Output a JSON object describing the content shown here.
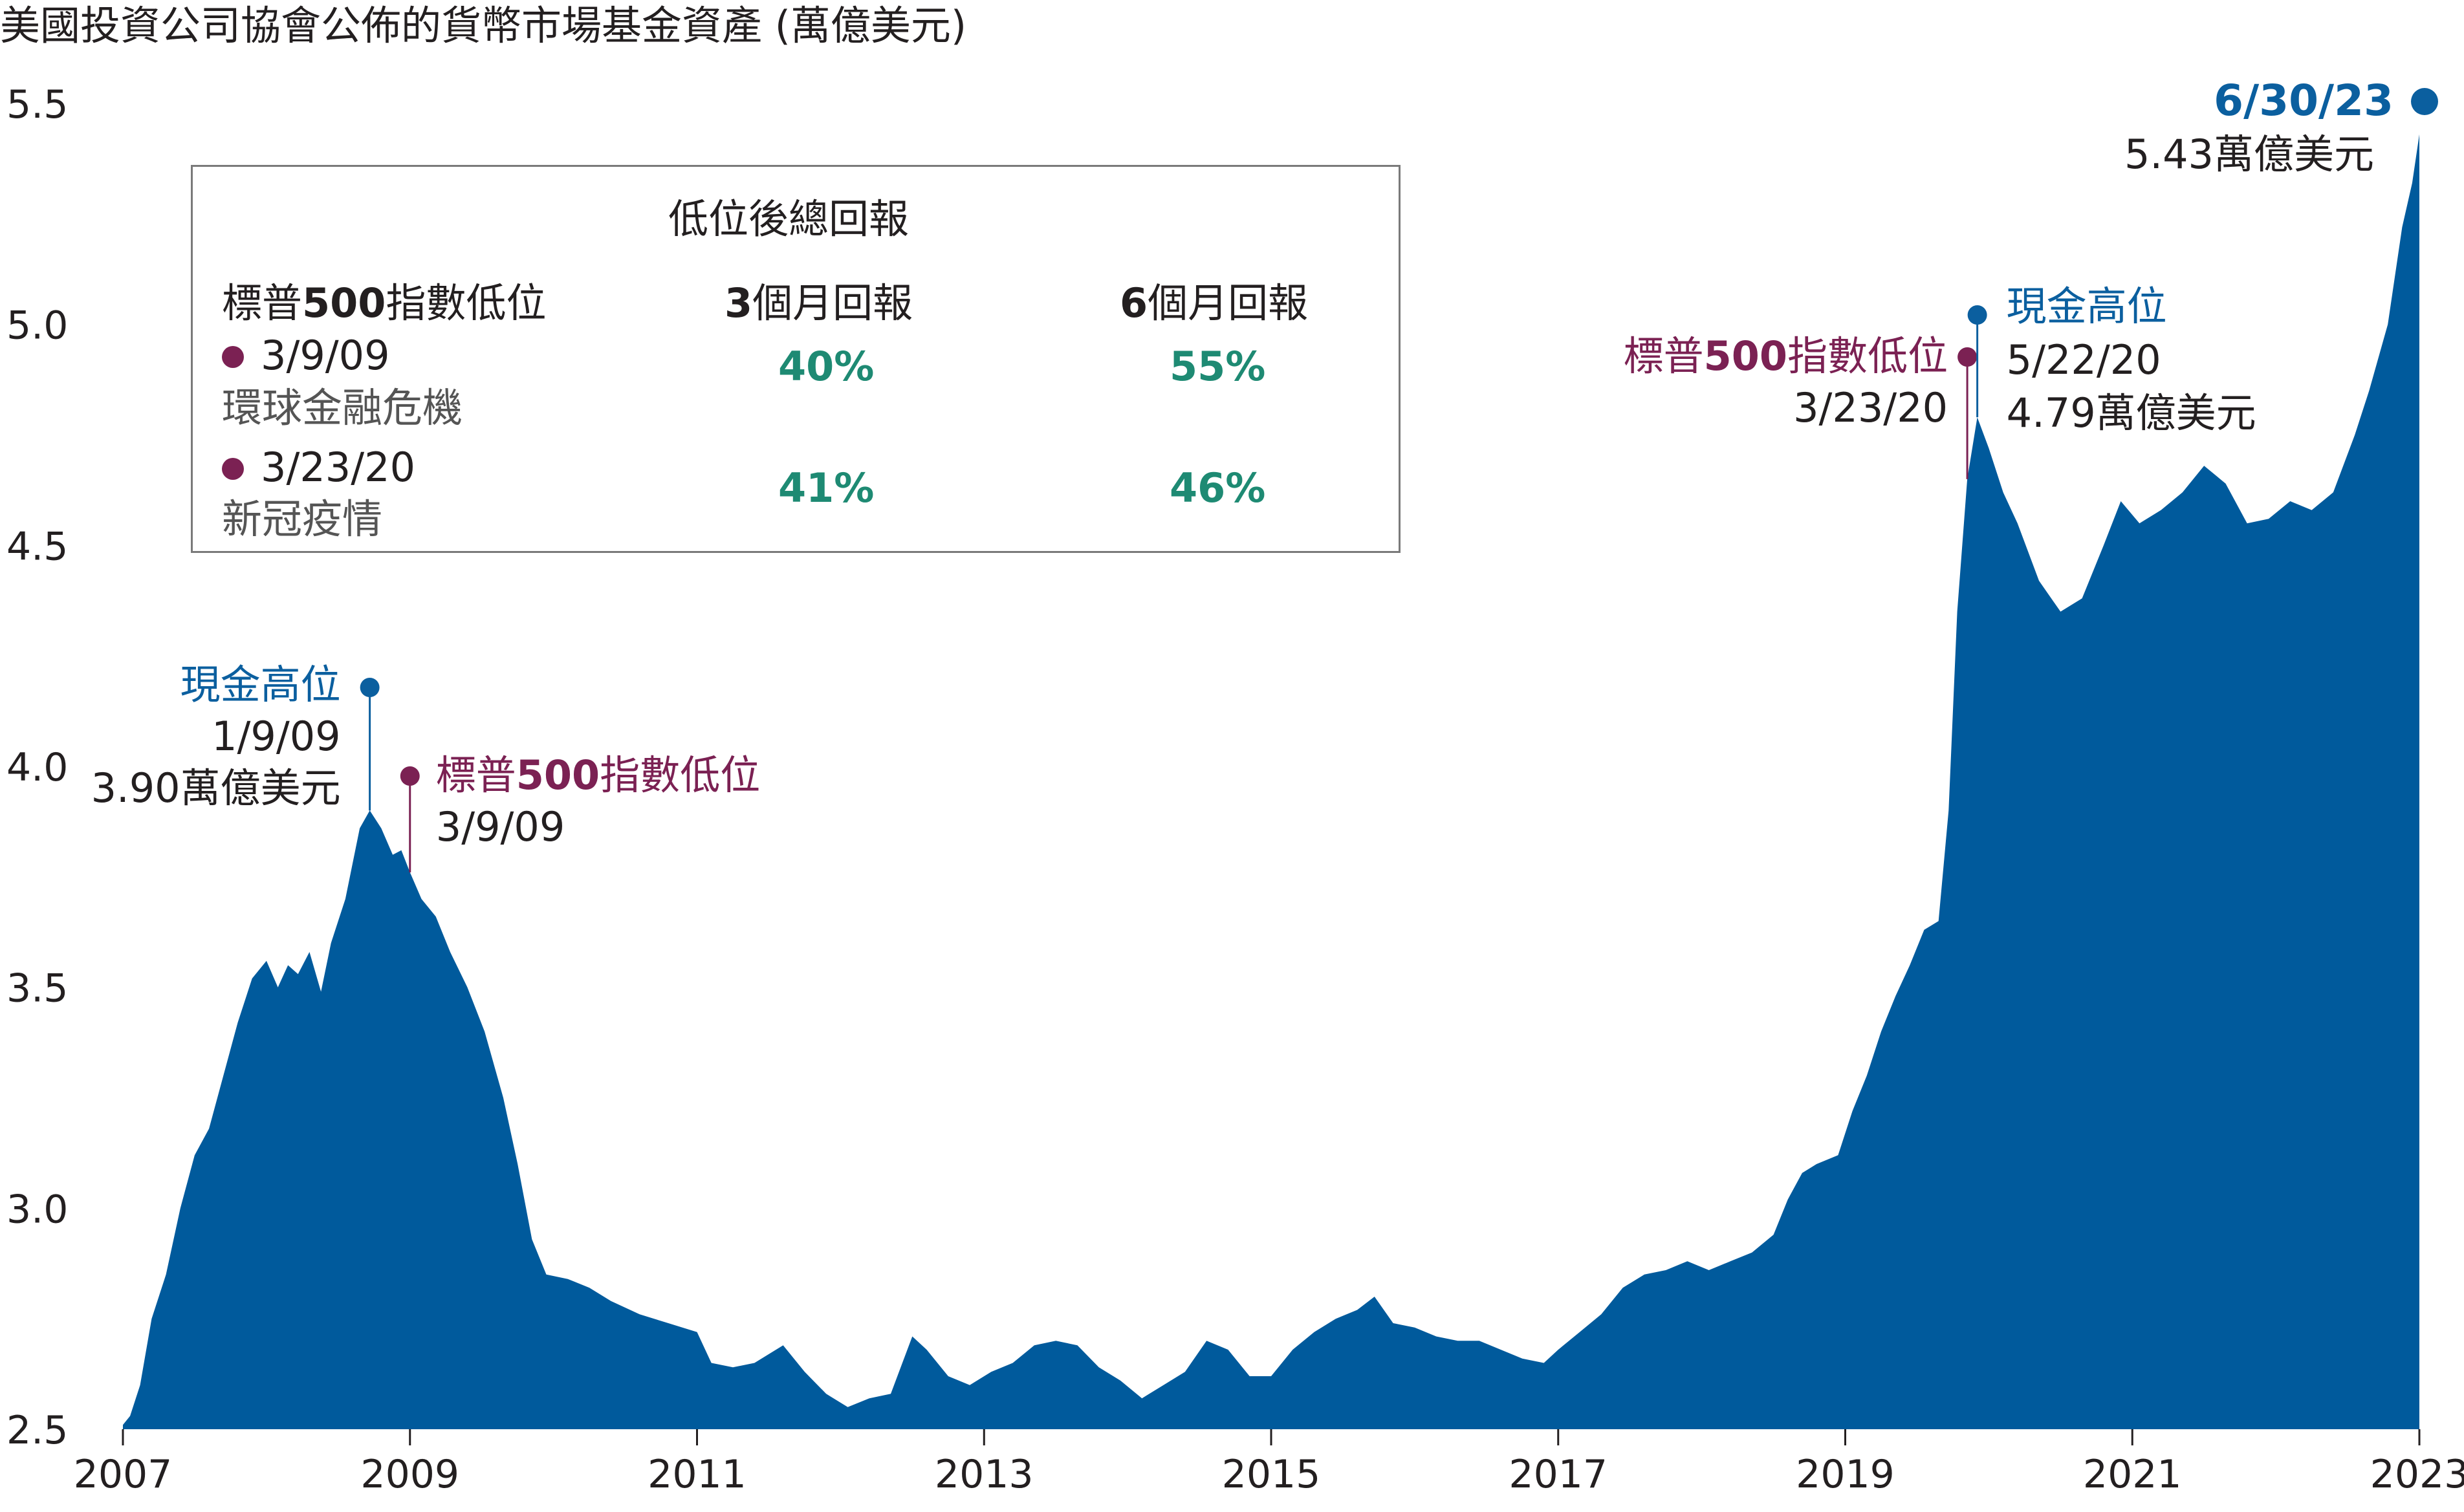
{
  "colors": {
    "area": "#005a9c",
    "blue_label": "#0b5f9f",
    "plum_label": "#7b2153",
    "green_value": "#1e8a73",
    "axis_text": "#231f20"
  },
  "chart_data": {
    "type": "area",
    "title": "美國投資公司協會公佈的貨幣市場基金資產 (萬億美元)",
    "xlabel": "",
    "ylabel": "",
    "xlim": [
      2007.0,
      2023.0
    ],
    "ylim": [
      2.5,
      5.5
    ],
    "x_ticks": [
      "2007",
      "2009",
      "2011",
      "2013",
      "2015",
      "2017",
      "2019",
      "2021",
      "2023"
    ],
    "y_ticks": [
      "2.5",
      "3.0",
      "3.5",
      "4.0",
      "4.5",
      "5.0",
      "5.5"
    ],
    "grid": false,
    "series": [
      {
        "points": [
          [
            2007.0,
            2.51
          ],
          [
            2007.05,
            2.53
          ],
          [
            2007.12,
            2.6
          ],
          [
            2007.2,
            2.75
          ],
          [
            2007.3,
            2.85
          ],
          [
            2007.4,
            3.0
          ],
          [
            2007.5,
            3.12
          ],
          [
            2007.6,
            3.18
          ],
          [
            2007.7,
            3.3
          ],
          [
            2007.8,
            3.42
          ],
          [
            2007.9,
            3.52
          ],
          [
            2008.0,
            3.56
          ],
          [
            2008.08,
            3.5
          ],
          [
            2008.15,
            3.55
          ],
          [
            2008.22,
            3.53
          ],
          [
            2008.3,
            3.58
          ],
          [
            2008.38,
            3.49
          ],
          [
            2008.45,
            3.6
          ],
          [
            2008.55,
            3.7
          ],
          [
            2008.65,
            3.86
          ],
          [
            2008.72,
            3.9
          ],
          [
            2008.8,
            3.86
          ],
          [
            2008.88,
            3.8
          ],
          [
            2008.94,
            3.81
          ],
          [
            2009.0,
            3.76
          ],
          [
            2009.08,
            3.7
          ],
          [
            2009.18,
            3.66
          ],
          [
            2009.28,
            3.58
          ],
          [
            2009.4,
            3.5
          ],
          [
            2009.52,
            3.4
          ],
          [
            2009.65,
            3.25
          ],
          [
            2009.75,
            3.1
          ],
          [
            2009.85,
            2.93
          ],
          [
            2009.95,
            2.85
          ],
          [
            2010.1,
            2.84
          ],
          [
            2010.25,
            2.82
          ],
          [
            2010.4,
            2.79
          ],
          [
            2010.6,
            2.76
          ],
          [
            2010.8,
            2.74
          ],
          [
            2011.0,
            2.72
          ],
          [
            2011.1,
            2.65
          ],
          [
            2011.25,
            2.64
          ],
          [
            2011.4,
            2.65
          ],
          [
            2011.6,
            2.69
          ],
          [
            2011.75,
            2.63
          ],
          [
            2011.9,
            2.58
          ],
          [
            2012.05,
            2.55
          ],
          [
            2012.2,
            2.57
          ],
          [
            2012.35,
            2.58
          ],
          [
            2012.5,
            2.71
          ],
          [
            2012.6,
            2.68
          ],
          [
            2012.75,
            2.62
          ],
          [
            2012.9,
            2.6
          ],
          [
            2013.05,
            2.63
          ],
          [
            2013.2,
            2.65
          ],
          [
            2013.35,
            2.69
          ],
          [
            2013.5,
            2.7
          ],
          [
            2013.65,
            2.69
          ],
          [
            2013.8,
            2.64
          ],
          [
            2013.95,
            2.61
          ],
          [
            2014.1,
            2.57
          ],
          [
            2014.25,
            2.6
          ],
          [
            2014.4,
            2.63
          ],
          [
            2014.55,
            2.7
          ],
          [
            2014.7,
            2.68
          ],
          [
            2014.85,
            2.62
          ],
          [
            2015.0,
            2.62
          ],
          [
            2015.15,
            2.68
          ],
          [
            2015.3,
            2.72
          ],
          [
            2015.45,
            2.75
          ],
          [
            2015.6,
            2.77
          ],
          [
            2015.72,
            2.8
          ],
          [
            2015.85,
            2.74
          ],
          [
            2016.0,
            2.73
          ],
          [
            2016.15,
            2.71
          ],
          [
            2016.3,
            2.7
          ],
          [
            2016.45,
            2.7
          ],
          [
            2016.6,
            2.68
          ],
          [
            2016.75,
            2.66
          ],
          [
            2016.9,
            2.65
          ],
          [
            2017.0,
            2.68
          ],
          [
            2017.15,
            2.72
          ],
          [
            2017.3,
            2.76
          ],
          [
            2017.45,
            2.82
          ],
          [
            2017.6,
            2.85
          ],
          [
            2017.75,
            2.86
          ],
          [
            2017.9,
            2.88
          ],
          [
            2018.05,
            2.86
          ],
          [
            2018.2,
            2.88
          ],
          [
            2018.35,
            2.9
          ],
          [
            2018.5,
            2.94
          ],
          [
            2018.6,
            3.02
          ],
          [
            2018.7,
            3.08
          ],
          [
            2018.8,
            3.1
          ],
          [
            2018.95,
            3.12
          ],
          [
            2019.05,
            3.22
          ],
          [
            2019.15,
            3.3
          ],
          [
            2019.25,
            3.4
          ],
          [
            2019.35,
            3.48
          ],
          [
            2019.45,
            3.55
          ],
          [
            2019.55,
            3.63
          ],
          [
            2019.65,
            3.65
          ],
          [
            2019.72,
            3.9
          ],
          [
            2019.78,
            4.35
          ],
          [
            2019.85,
            4.65
          ],
          [
            2019.92,
            4.79
          ],
          [
            2020.0,
            4.72
          ],
          [
            2020.1,
            4.62
          ],
          [
            2020.2,
            4.55
          ],
          [
            2020.35,
            4.42
          ],
          [
            2020.5,
            4.35
          ],
          [
            2020.65,
            4.38
          ],
          [
            2020.8,
            4.5
          ],
          [
            2020.92,
            4.6
          ],
          [
            2021.05,
            4.55
          ],
          [
            2021.2,
            4.58
          ],
          [
            2021.35,
            4.62
          ],
          [
            2021.5,
            4.68
          ],
          [
            2021.65,
            4.64
          ],
          [
            2021.8,
            4.55
          ],
          [
            2021.95,
            4.56
          ],
          [
            2022.1,
            4.6
          ],
          [
            2022.25,
            4.58
          ],
          [
            2022.4,
            4.62
          ],
          [
            2022.55,
            4.75
          ],
          [
            2022.65,
            4.85
          ],
          [
            2022.78,
            5.0
          ],
          [
            2022.88,
            5.22
          ],
          [
            2022.95,
            5.32
          ],
          [
            2023.0,
            5.43
          ]
        ]
      }
    ],
    "annotations": [
      {
        "kind": "cash_high",
        "label": "現金高位",
        "date": "1/9/09",
        "value_label": "3.90萬億美元",
        "x": 2008.72,
        "y": 3.9
      },
      {
        "kind": "sp_low",
        "label_prefix": "標普",
        "label_bold": "500",
        "label_suffix": "指數低位",
        "date": "3/9/09",
        "x": 2009.0,
        "y": 3.76
      },
      {
        "kind": "sp_low",
        "label_prefix": "標普",
        "label_bold": "500",
        "label_suffix": "指數低位",
        "date": "3/23/20",
        "x": 2019.85,
        "y": 4.65
      },
      {
        "kind": "cash_high",
        "label": "現金高位",
        "date": "5/22/20",
        "value_label": "4.79萬億美元",
        "x": 2019.92,
        "y": 4.79
      },
      {
        "kind": "end",
        "date": "6/30/23",
        "value_label": "5.43萬億美元",
        "x": 2023.0,
        "y": 5.43
      }
    ]
  },
  "legend_table": {
    "title": "低位後總回報",
    "col_event_prefix": "標普",
    "col_event_bold": "500",
    "col_event_suffix": "指數低位",
    "col_3m_bold": "3",
    "col_3m_rest": "個月回報",
    "col_6m_bold": "6",
    "col_6m_rest": "個月回報",
    "rows": [
      {
        "date": "3/9/09",
        "event": "環球金融危機",
        "return_3m": "40%",
        "return_6m": "55%"
      },
      {
        "date": "3/23/20",
        "event": "新冠疫情",
        "return_3m": "41%",
        "return_6m": "46%"
      }
    ]
  }
}
